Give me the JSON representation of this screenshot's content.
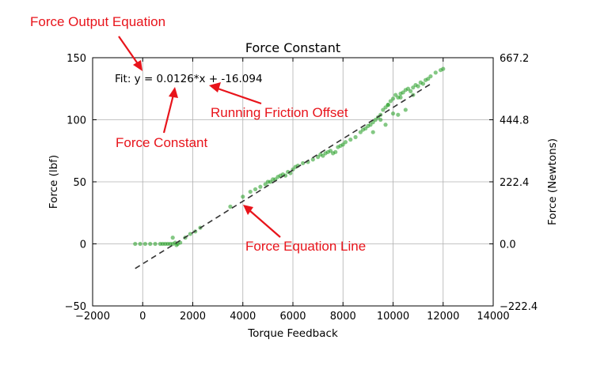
{
  "annotations": {
    "output_equation": "Force Output Equation",
    "force_constant": "Force Constant",
    "running_friction": "Running Friction Offset",
    "equation_line": "Force Equation Line"
  },
  "colors": {
    "annotation": "#e8141b",
    "scatter": "#1f9a1f",
    "fit_line": "#333333",
    "grid": "#b0b0b0"
  },
  "chart_data": {
    "type": "scatter",
    "title": "Force Constant",
    "xlabel": "Torque Feedback",
    "ylabel": "Force (lbf)",
    "y2label": "Force (Newtons)",
    "xlim": [
      -2000,
      14000
    ],
    "ylim": [
      -50,
      150
    ],
    "x_ticks": [
      -2000,
      0,
      2000,
      4000,
      6000,
      8000,
      10000,
      12000,
      14000
    ],
    "x_tick_labels": [
      "−2000",
      "0",
      "2000",
      "4000",
      "6000",
      "8000",
      "10000",
      "12000",
      "14000"
    ],
    "y_ticks": [
      -50,
      0,
      50,
      100,
      150
    ],
    "y_tick_labels": [
      "−50",
      "0",
      "50",
      "100",
      "150"
    ],
    "y2_ticks": [
      -50,
      0,
      50,
      100,
      150
    ],
    "y2_tick_labels": [
      "−222.4",
      "0.0",
      "222.4",
      "444.8",
      "667.2"
    ],
    "grid": true,
    "fit": {
      "label": "Fit: y = 0.0126*x + -16.094",
      "slope": 0.0126,
      "intercept": -16.094,
      "x_range": [
        -300,
        11600
      ]
    },
    "series": [
      {
        "name": "measurements",
        "x": [
          -300,
          -100,
          100,
          300,
          500,
          700,
          800,
          900,
          1000,
          1100,
          1200,
          1300,
          1400,
          1500,
          1200,
          1350,
          1700,
          1900,
          2100,
          2300,
          3500,
          4000,
          4300,
          4500,
          4700,
          4900,
          5000,
          5100,
          5200,
          5300,
          5400,
          5500,
          5600,
          5700,
          5800,
          5900,
          6000,
          6100,
          6200,
          6400,
          6600,
          6800,
          7000,
          7100,
          7200,
          7300,
          7400,
          7500,
          7600,
          7700,
          7800,
          7900,
          8000,
          8100,
          8300,
          8500,
          8700,
          8800,
          8900,
          9000,
          9100,
          9200,
          9300,
          9400,
          9500,
          9600,
          9700,
          9800,
          9900,
          10000,
          10100,
          10200,
          10300,
          10400,
          10500,
          10600,
          10700,
          10800,
          10900,
          11000,
          11100,
          11200,
          11300,
          11400,
          11500,
          11700,
          11900,
          12000,
          9500,
          10000,
          10500,
          9800,
          10300,
          10800,
          9200,
          9700,
          10200
        ],
        "y": [
          0,
          0,
          0,
          0,
          0,
          0,
          0,
          0,
          0,
          0,
          0,
          1,
          0,
          1,
          5,
          -1,
          5,
          8,
          10,
          13,
          30,
          38,
          42,
          44,
          46,
          48,
          50,
          50,
          52,
          52,
          54,
          55,
          56,
          55,
          58,
          57,
          60,
          62,
          63,
          65,
          66,
          68,
          70,
          72,
          71,
          73,
          74,
          75,
          73,
          74,
          78,
          79,
          80,
          82,
          84,
          86,
          90,
          92,
          93,
          95,
          96,
          98,
          100,
          102,
          104,
          108,
          110,
          112,
          115,
          117,
          120,
          118,
          121,
          122,
          124,
          125,
          123,
          126,
          128,
          127,
          130,
          129,
          132,
          133,
          135,
          138,
          140,
          141,
          100,
          105,
          108,
          112,
          118,
          120,
          90,
          96,
          104
        ]
      }
    ]
  }
}
